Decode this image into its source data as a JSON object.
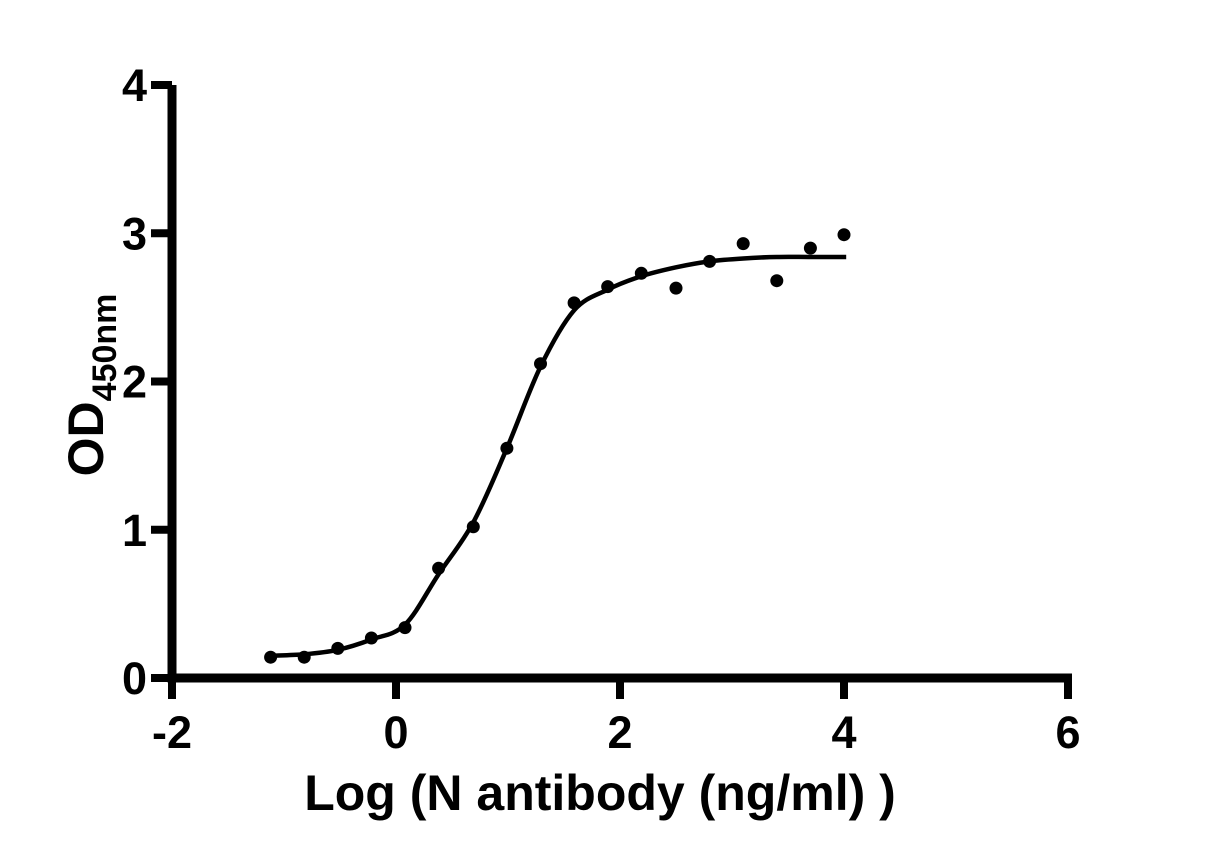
{
  "figure": {
    "background_color": "#ffffff",
    "ink_color": "#000000"
  },
  "chart_data": {
    "type": "scatter",
    "title": "",
    "xlabel": "Log （N antibody （ng/ml） ）",
    "ylabel": "OD",
    "ylabel_subscript": "450nm",
    "xlim": [
      -2,
      6
    ],
    "ylim": [
      0,
      4
    ],
    "xticks": [
      -2,
      0,
      2,
      4,
      6
    ],
    "yticks": [
      0,
      1,
      2,
      3,
      4
    ],
    "grid": false,
    "legend": "none",
    "marker_color": "#000000",
    "curve_color": "#000000",
    "axis_color": "#000000",
    "points": [
      {
        "x": -1.12,
        "y": 0.14
      },
      {
        "x": -0.82,
        "y": 0.14
      },
      {
        "x": -0.52,
        "y": 0.2
      },
      {
        "x": -0.22,
        "y": 0.27
      },
      {
        "x": 0.08,
        "y": 0.34
      },
      {
        "x": 0.38,
        "y": 0.74
      },
      {
        "x": 0.69,
        "y": 1.02
      },
      {
        "x": 0.99,
        "y": 1.55
      },
      {
        "x": 1.29,
        "y": 2.12
      },
      {
        "x": 1.59,
        "y": 2.53
      },
      {
        "x": 1.89,
        "y": 2.64
      },
      {
        "x": 2.19,
        "y": 2.73
      },
      {
        "x": 2.5,
        "y": 2.63
      },
      {
        "x": 2.8,
        "y": 2.81
      },
      {
        "x": 3.1,
        "y": 2.93
      },
      {
        "x": 3.4,
        "y": 2.68
      },
      {
        "x": 3.7,
        "y": 2.9
      },
      {
        "x": 4.0,
        "y": 2.99
      }
    ],
    "fit_curve": [
      {
        "x": -1.12,
        "y": 0.15
      },
      {
        "x": -0.82,
        "y": 0.16
      },
      {
        "x": -0.52,
        "y": 0.19
      },
      {
        "x": -0.22,
        "y": 0.26
      },
      {
        "x": 0.08,
        "y": 0.36
      },
      {
        "x": 0.38,
        "y": 0.7
      },
      {
        "x": 0.69,
        "y": 1.05
      },
      {
        "x": 0.99,
        "y": 1.55
      },
      {
        "x": 1.29,
        "y": 2.1
      },
      {
        "x": 1.59,
        "y": 2.48
      },
      {
        "x": 1.89,
        "y": 2.62
      },
      {
        "x": 2.19,
        "y": 2.71
      },
      {
        "x": 2.5,
        "y": 2.77
      },
      {
        "x": 2.8,
        "y": 2.81
      },
      {
        "x": 3.1,
        "y": 2.83
      },
      {
        "x": 3.4,
        "y": 2.84
      },
      {
        "x": 3.7,
        "y": 2.84
      },
      {
        "x": 4.02,
        "y": 2.84
      }
    ]
  }
}
